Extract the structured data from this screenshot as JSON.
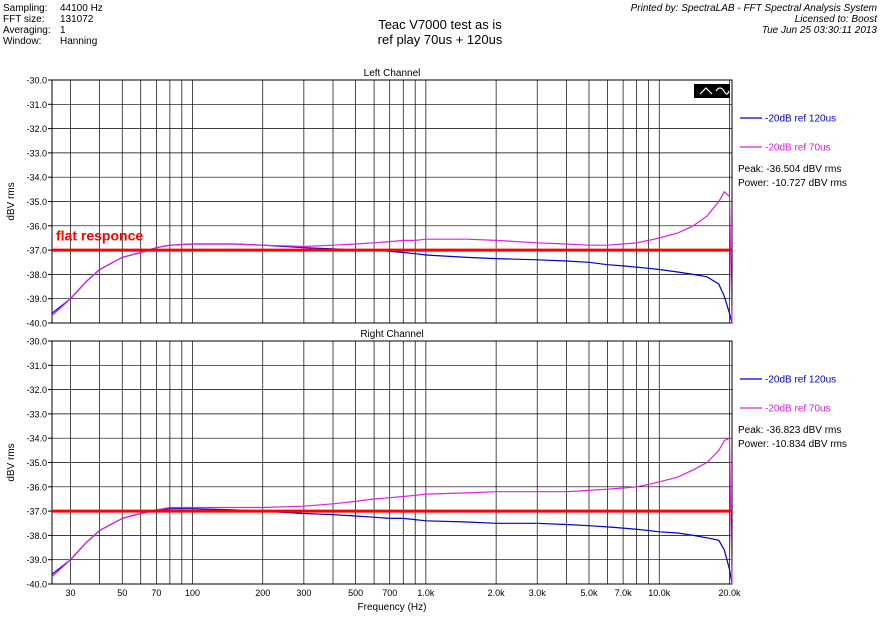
{
  "header": {
    "settings": [
      {
        "label": "Sampling:",
        "value": "44100 Hz"
      },
      {
        "label": "FFT size:",
        "value": "131072"
      },
      {
        "label": "Averaging:",
        "value": "1"
      },
      {
        "label": "Window:",
        "value": "Hanning"
      }
    ],
    "title_line1": "Teac V7000 test as is",
    "title_line2": "ref play 70us + 120us",
    "printed_by": "Printed by: SpectraLAB - FFT Spectral Analysis System",
    "licensed_to": "Licensed to: Boost",
    "timestamp": "Tue Jun 25 03:30:11 2013"
  },
  "colors": {
    "series_120us": "#0000cc",
    "series_70us": "#e020e0",
    "reference_line": "#ff0000",
    "annotation_text": "#ff0000"
  },
  "chart_data": [
    {
      "type": "line",
      "title": "Left Channel",
      "xlabel": "",
      "ylabel": "dBV rms",
      "xscale": "log",
      "xlim": [
        25,
        20500
      ],
      "ylim": [
        -40.0,
        -30.0
      ],
      "yticks": [
        "-30.0",
        "-31.0",
        "-32.0",
        "-33.0",
        "-34.0",
        "-35.0",
        "-36.0",
        "-37.0",
        "-38.0",
        "-39.0",
        "-40.0"
      ],
      "xticks": [],
      "grid": true,
      "legend_position": "right",
      "series": [
        {
          "name": "-20dB ref 120us",
          "x": [
            25,
            30,
            35,
            40,
            50,
            60,
            70,
            80,
            100,
            150,
            200,
            300,
            400,
            500,
            600,
            700,
            800,
            900,
            1000,
            1500,
            2000,
            3000,
            4000,
            5000,
            6000,
            7000,
            8000,
            9000,
            10000,
            12000,
            14000,
            16000,
            18000,
            19000,
            20000,
            20500
          ],
          "y": [
            -39.6,
            -39.0,
            -38.3,
            -37.8,
            -37.3,
            -37.1,
            -36.9,
            -36.8,
            -36.75,
            -36.75,
            -36.8,
            -36.9,
            -36.95,
            -37.0,
            -37.0,
            -37.05,
            -37.1,
            -37.15,
            -37.2,
            -37.3,
            -37.35,
            -37.4,
            -37.45,
            -37.5,
            -37.6,
            -37.65,
            -37.7,
            -37.75,
            -37.8,
            -37.9,
            -38.0,
            -38.1,
            -38.4,
            -38.9,
            -39.6,
            -40.0
          ]
        },
        {
          "name": "-20dB ref 70us",
          "x": [
            25,
            30,
            35,
            40,
            50,
            60,
            70,
            80,
            100,
            150,
            200,
            300,
            400,
            500,
            600,
            700,
            800,
            900,
            1000,
            1500,
            2000,
            3000,
            4000,
            5000,
            6000,
            7000,
            8000,
            9000,
            10000,
            12000,
            14000,
            16000,
            18000,
            19000,
            20000,
            20500
          ],
          "y": [
            -39.7,
            -39.0,
            -38.3,
            -37.8,
            -37.3,
            -37.1,
            -36.9,
            -36.8,
            -36.75,
            -36.75,
            -36.8,
            -36.85,
            -36.8,
            -36.75,
            -36.7,
            -36.65,
            -36.6,
            -36.6,
            -36.55,
            -36.55,
            -36.6,
            -36.7,
            -36.75,
            -36.8,
            -36.8,
            -36.75,
            -36.7,
            -36.6,
            -36.5,
            -36.3,
            -36.0,
            -35.6,
            -35.0,
            -34.6,
            -34.8,
            -40.0
          ]
        }
      ],
      "reference_line": {
        "y": -37.0
      },
      "annotation": "flat responce",
      "stats": {
        "peak": "Peak: -36.504 dBV rms",
        "power": "Power: -10.727 dBV rms"
      }
    },
    {
      "type": "line",
      "title": "Right Channel",
      "xlabel": "Frequency (Hz)",
      "ylabel": "dBV rms",
      "xscale": "log",
      "xlim": [
        25,
        20500
      ],
      "ylim": [
        -40.0,
        -30.0
      ],
      "yticks": [
        "-30.0",
        "-31.0",
        "-32.0",
        "-33.0",
        "-34.0",
        "-35.0",
        "-36.0",
        "-37.0",
        "-38.0",
        "-39.0",
        "-40.0"
      ],
      "xticks": [
        {
          "value": 30,
          "label": "30"
        },
        {
          "value": 50,
          "label": "50"
        },
        {
          "value": 70,
          "label": "70"
        },
        {
          "value": 100,
          "label": "100"
        },
        {
          "value": 200,
          "label": "200"
        },
        {
          "value": 300,
          "label": "300"
        },
        {
          "value": 500,
          "label": "500"
        },
        {
          "value": 700,
          "label": "700"
        },
        {
          "value": 1000,
          "label": "1.0k"
        },
        {
          "value": 2000,
          "label": "2.0k"
        },
        {
          "value": 3000,
          "label": "3.0k"
        },
        {
          "value": 5000,
          "label": "5.0k"
        },
        {
          "value": 7000,
          "label": "7.0k"
        },
        {
          "value": 10000,
          "label": "10.0k"
        },
        {
          "value": 20000,
          "label": "20.0k"
        }
      ],
      "grid": true,
      "legend_position": "right",
      "series": [
        {
          "name": "-20dB ref 120us",
          "x": [
            25,
            30,
            35,
            40,
            50,
            60,
            70,
            80,
            100,
            150,
            200,
            300,
            400,
            500,
            600,
            700,
            800,
            900,
            1000,
            1500,
            2000,
            3000,
            4000,
            5000,
            6000,
            7000,
            8000,
            9000,
            10000,
            12000,
            14000,
            16000,
            18000,
            19000,
            20000,
            20500
          ],
          "y": [
            -39.6,
            -39.0,
            -38.3,
            -37.8,
            -37.3,
            -37.1,
            -36.95,
            -36.9,
            -36.9,
            -36.95,
            -37.0,
            -37.1,
            -37.15,
            -37.2,
            -37.25,
            -37.3,
            -37.3,
            -37.35,
            -37.4,
            -37.45,
            -37.5,
            -37.5,
            -37.55,
            -37.6,
            -37.65,
            -37.7,
            -37.75,
            -37.8,
            -37.85,
            -37.9,
            -38.0,
            -38.1,
            -38.2,
            -38.6,
            -39.4,
            -40.0
          ]
        },
        {
          "name": "-20dB ref 70us",
          "x": [
            25,
            30,
            35,
            40,
            50,
            60,
            70,
            80,
            100,
            150,
            200,
            300,
            400,
            500,
            600,
            700,
            800,
            900,
            1000,
            1500,
            2000,
            3000,
            4000,
            5000,
            6000,
            7000,
            8000,
            9000,
            10000,
            12000,
            14000,
            16000,
            18000,
            19000,
            20000,
            20500
          ],
          "y": [
            -39.7,
            -39.0,
            -38.3,
            -37.8,
            -37.3,
            -37.1,
            -36.95,
            -36.85,
            -36.85,
            -36.85,
            -36.85,
            -36.8,
            -36.7,
            -36.6,
            -36.5,
            -36.45,
            -36.4,
            -36.35,
            -36.3,
            -36.25,
            -36.2,
            -36.2,
            -36.2,
            -36.15,
            -36.1,
            -36.05,
            -36.0,
            -35.9,
            -35.8,
            -35.6,
            -35.3,
            -35.0,
            -34.5,
            -34.1,
            -34.0,
            -40.0
          ]
        }
      ],
      "reference_line": {
        "y": -37.0
      },
      "annotation": "",
      "stats": {
        "peak": "Peak: -36.823 dBV rms",
        "power": "Power: -10.834 dBV rms"
      }
    }
  ]
}
